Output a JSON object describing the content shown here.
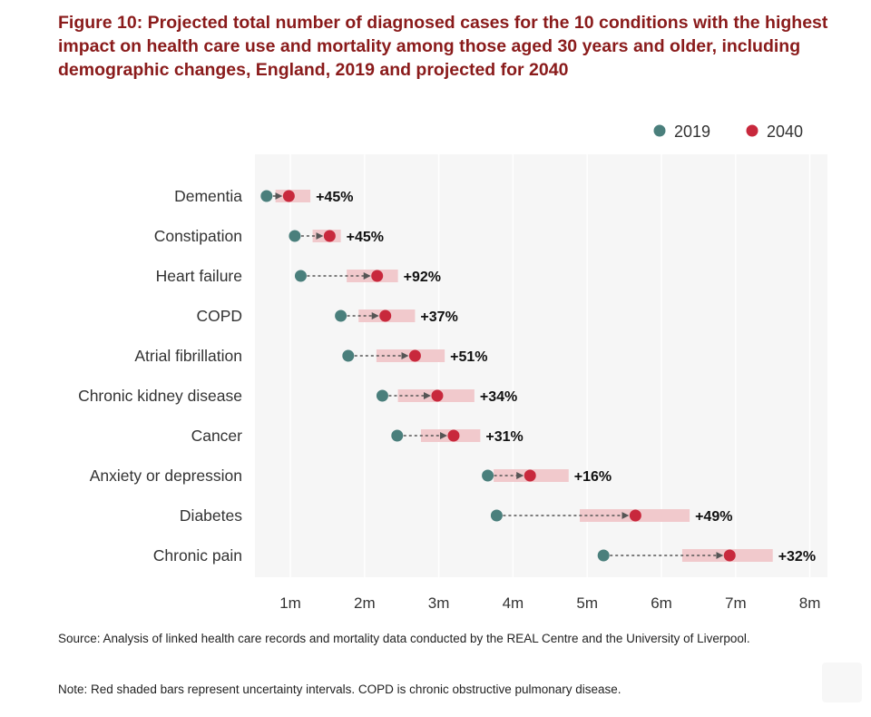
{
  "title": "Figure 10: Projected total number of diagnosed cases for the 10 conditions with the highest impact on health care use and mortality among those aged 30 years and older, including demographic changes, England, 2019 and projected for 2040",
  "source": "Source: Analysis of linked health care records and mortality data conducted by the REAL Centre and the University of Liverpool.",
  "note": "Note: Red shaded bars represent uncertainty intervals. COPD is chronic obstructive pulmonary disease.",
  "colors": {
    "y2019": "#4a7f7c",
    "y2040": "#c8283c",
    "interval": "#f1c9cc",
    "plot_bg": "#f6f6f6",
    "arrow": "#555555",
    "title": "#8a1b1b"
  },
  "chart_data": {
    "type": "dumbbell",
    "title": "Projected total number of diagnosed cases, 2019 and projected for 2040",
    "legend": [
      "2019",
      "2040"
    ],
    "legend_position": "top-right",
    "xlim": [
      0.55,
      8.0
    ],
    "x_ticks": [
      1,
      2,
      3,
      4,
      5,
      6,
      7,
      8
    ],
    "x_tick_labels": [
      "1m",
      "2m",
      "3m",
      "4m",
      "5m",
      "6m",
      "7m",
      "8m"
    ],
    "grid": true,
    "categories": [
      "Dementia",
      "Constipation",
      "Heart failure",
      "COPD",
      "Atrial fibrillation",
      "Chronic kidney disease",
      "Cancer",
      "Anxiety or depression",
      "Diabetes",
      "Chronic pain"
    ],
    "series": [
      {
        "name": "2019",
        "values": [
          0.68,
          1.06,
          1.14,
          1.68,
          1.78,
          2.24,
          2.44,
          3.66,
          3.78,
          5.22
        ]
      },
      {
        "name": "2040",
        "values": [
          0.98,
          1.53,
          2.17,
          2.28,
          2.68,
          2.98,
          3.2,
          4.23,
          5.65,
          6.92
        ]
      }
    ],
    "interval_low": [
      0.8,
      1.3,
      1.76,
      1.92,
      2.16,
      2.45,
      2.76,
      3.74,
      4.9,
      6.28
    ],
    "interval_high": [
      1.27,
      1.68,
      2.45,
      2.68,
      3.08,
      3.48,
      3.56,
      4.75,
      6.38,
      7.5
    ],
    "annotations": [
      "+45%",
      "+45%",
      "+92%",
      "+37%",
      "+51%",
      "+34%",
      "+31%",
      "+16%",
      "+49%",
      "+32%"
    ]
  }
}
